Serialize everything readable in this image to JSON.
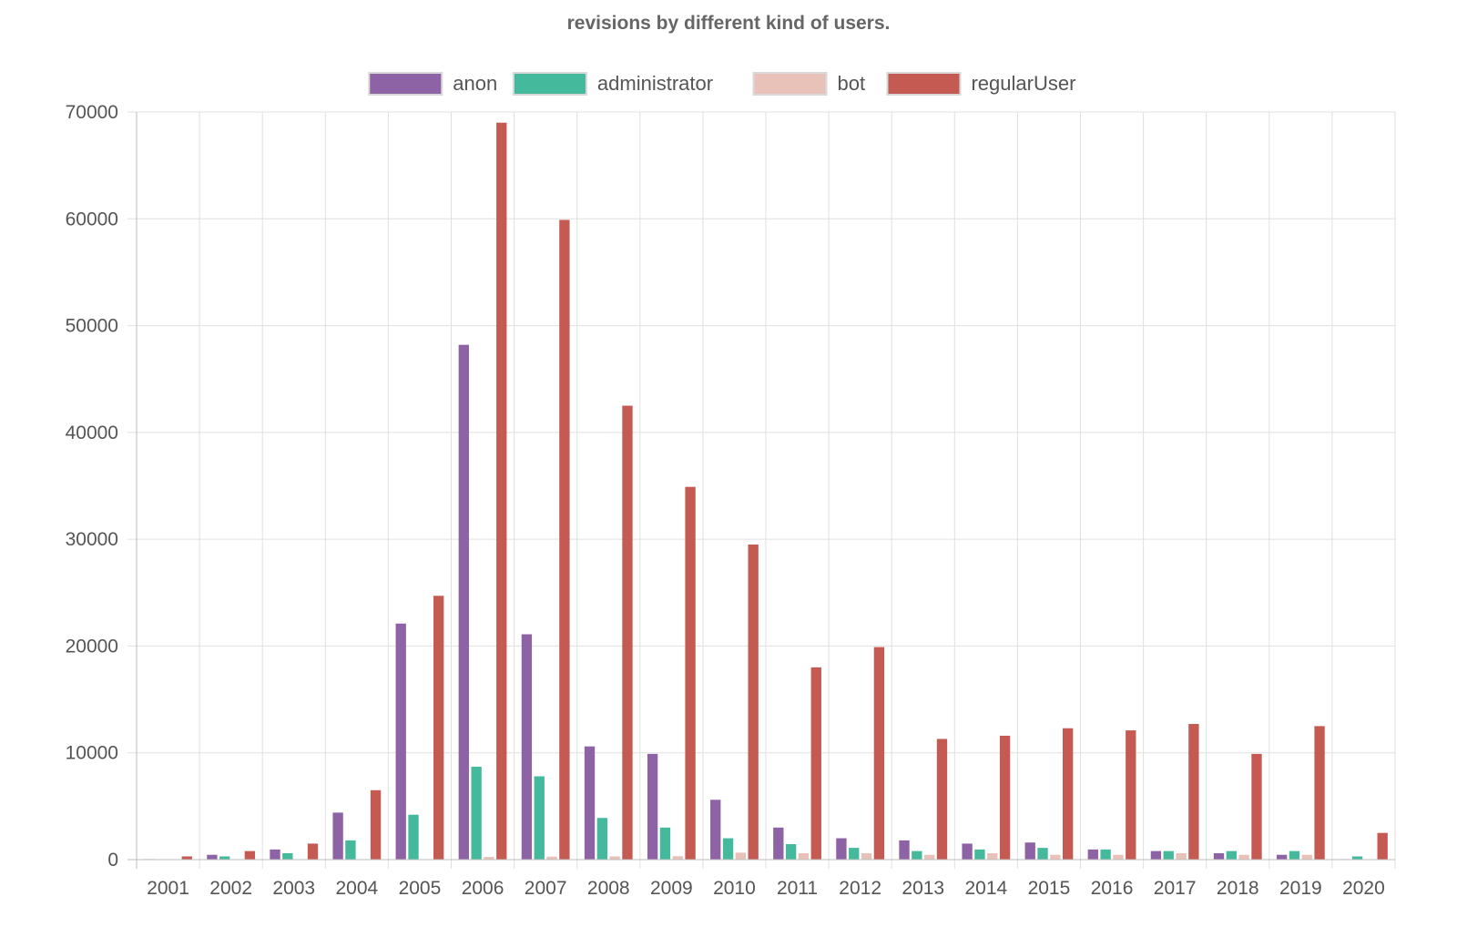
{
  "chart_data": {
    "type": "bar",
    "title": "revisions by different kind of users.",
    "xlabel": "",
    "ylabel": "",
    "ylim": [
      0,
      70000
    ],
    "yticks": [
      0,
      10000,
      20000,
      30000,
      40000,
      50000,
      60000,
      70000
    ],
    "grid": true,
    "legend_position": "top",
    "categories": [
      "2001",
      "2002",
      "2003",
      "2004",
      "2005",
      "2006",
      "2007",
      "2008",
      "2009",
      "2010",
      "2011",
      "2012",
      "2013",
      "2014",
      "2015",
      "2016",
      "2017",
      "2018",
      "2019",
      "2020"
    ],
    "series": [
      {
        "name": "anon",
        "color": "#8e63a6",
        "values": [
          50,
          450,
          950,
          4400,
          22100,
          48200,
          21100,
          10600,
          9900,
          5600,
          3000,
          2000,
          1800,
          1500,
          1600,
          950,
          800,
          600,
          450,
          50
        ]
      },
      {
        "name": "administrator",
        "color": "#45b99c",
        "values": [
          30,
          300,
          600,
          1800,
          4200,
          8700,
          7800,
          3900,
          3000,
          2000,
          1450,
          1100,
          800,
          950,
          1100,
          950,
          800,
          800,
          800,
          300
        ]
      },
      {
        "name": "bot",
        "color": "#e8c1b8",
        "values": [
          0,
          0,
          0,
          0,
          0,
          250,
          280,
          300,
          320,
          650,
          600,
          600,
          450,
          600,
          450,
          450,
          600,
          450,
          450,
          0
        ]
      },
      {
        "name": "regularUser",
        "color": "#c45a52",
        "values": [
          300,
          800,
          1500,
          6500,
          24700,
          69000,
          59900,
          42500,
          34900,
          29500,
          18000,
          19900,
          11300,
          11600,
          12300,
          12100,
          12700,
          9900,
          12500,
          2500
        ]
      }
    ]
  }
}
